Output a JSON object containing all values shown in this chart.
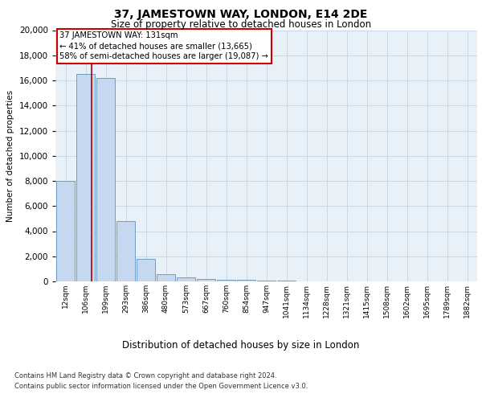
{
  "title_line1": "37, JAMESTOWN WAY, LONDON, E14 2DE",
  "title_line2": "Size of property relative to detached houses in London",
  "xlabel": "Distribution of detached houses by size in London",
  "ylabel": "Number of detached properties",
  "categories": [
    "12sqm",
    "106sqm",
    "199sqm",
    "293sqm",
    "386sqm",
    "480sqm",
    "573sqm",
    "667sqm",
    "760sqm",
    "854sqm",
    "947sqm",
    "1041sqm",
    "1134sqm",
    "1228sqm",
    "1321sqm",
    "1415sqm",
    "1508sqm",
    "1602sqm",
    "1695sqm",
    "1789sqm",
    "1882sqm"
  ],
  "bar_heights": [
    8000,
    16500,
    16200,
    4800,
    1800,
    600,
    300,
    200,
    150,
    100,
    80,
    50,
    30,
    20,
    10,
    5,
    5,
    5,
    5,
    5,
    5
  ],
  "bar_color": "#c5d8ef",
  "bar_edgecolor": "#6b9ec8",
  "property_line_x": 1.3,
  "annotation_title": "37 JAMESTOWN WAY: 131sqm",
  "annotation_line1": "← 41% of detached houses are smaller (13,665)",
  "annotation_line2": "58% of semi-detached houses are larger (19,087) →",
  "annotation_box_color": "#ffffff",
  "annotation_box_edgecolor": "#cc0000",
  "vline_color": "#aa0000",
  "ylim": [
    0,
    20000
  ],
  "yticks": [
    0,
    2000,
    4000,
    6000,
    8000,
    10000,
    12000,
    14000,
    16000,
    18000,
    20000
  ],
  "grid_color": "#c8d8e8",
  "bg_color": "#e8f0f8",
  "footer_line1": "Contains HM Land Registry data © Crown copyright and database right 2024.",
  "footer_line2": "Contains public sector information licensed under the Open Government Licence v3.0."
}
